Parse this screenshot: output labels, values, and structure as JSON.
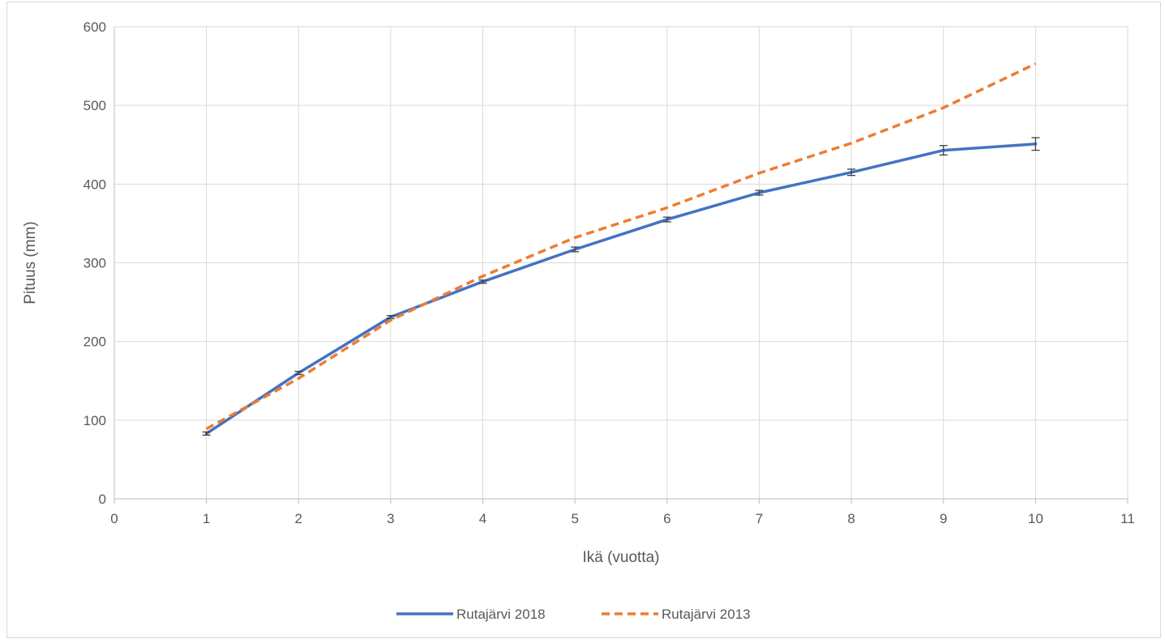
{
  "chart_data": {
    "type": "line",
    "title": "",
    "xlabel": "Ikä (vuotta)",
    "ylabel": "Pituus (mm)",
    "xlim": [
      0,
      11
    ],
    "ylim": [
      0,
      600
    ],
    "xticks": [
      "0",
      "1",
      "2",
      "3",
      "4",
      "5",
      "6",
      "7",
      "8",
      "9",
      "10",
      "11"
    ],
    "yticks": [
      "0",
      "100",
      "200",
      "300",
      "400",
      "500",
      "600"
    ],
    "grid": true,
    "legend_position": "bottom",
    "series": [
      {
        "name": "Rutajärvi 2018",
        "style": "solid",
        "color": "#4472c4",
        "x": [
          1,
          2,
          3,
          4,
          5,
          6,
          7,
          8,
          9,
          10
        ],
        "y": [
          83,
          160,
          231,
          276,
          317,
          355,
          389,
          415,
          443,
          451
        ],
        "error": [
          2,
          2,
          2,
          2,
          3,
          3,
          3,
          4,
          6,
          8
        ]
      },
      {
        "name": "Rutajärvi 2013",
        "style": "dashed",
        "color": "#ed7d31",
        "x": [
          1,
          2,
          3,
          4,
          5,
          6,
          7,
          8,
          9,
          10
        ],
        "y": [
          89,
          153,
          227,
          283,
          332,
          370,
          414,
          452,
          497,
          553
        ]
      }
    ]
  }
}
